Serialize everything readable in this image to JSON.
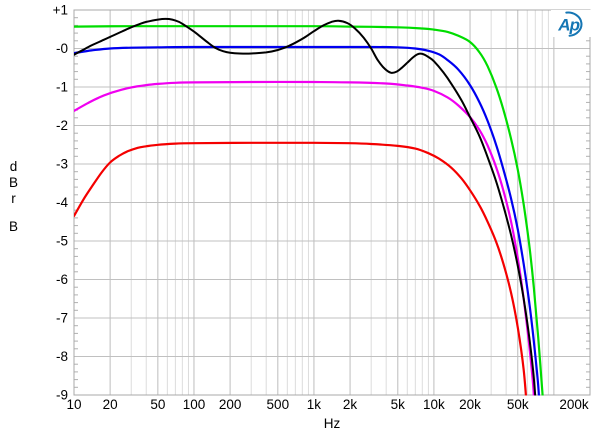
{
  "figure": {
    "background": "#ffffff"
  },
  "logo": {
    "text": "Ap",
    "color": "#1576b4"
  },
  "chart_data": {
    "type": "line",
    "title": "",
    "xlabel": "Hz",
    "ylabel_stack": [
      "d",
      "B",
      "r",
      "",
      "B"
    ],
    "x_axis": {
      "scale": "log",
      "min": 10,
      "max": 200000,
      "ticks": [
        {
          "v": 10,
          "label": "10"
        },
        {
          "v": 20,
          "label": "20"
        },
        {
          "v": 50,
          "label": "50"
        },
        {
          "v": 100,
          "label": "100"
        },
        {
          "v": 200,
          "label": "200"
        },
        {
          "v": 500,
          "label": "500"
        },
        {
          "v": 1000,
          "label": "1k"
        },
        {
          "v": 2000,
          "label": "2k"
        },
        {
          "v": 5000,
          "label": "5k"
        },
        {
          "v": 10000,
          "label": "10k"
        },
        {
          "v": 20000,
          "label": "20k"
        },
        {
          "v": 50000,
          "label": "50k"
        },
        {
          "v": 100000,
          "label": ""
        },
        {
          "v": 200000,
          "label": "200k"
        }
      ]
    },
    "y_axis": {
      "min": -9,
      "max": 1,
      "minor_tick_step": 0.2,
      "ticks": [
        {
          "v": 1,
          "label": "+1"
        },
        {
          "v": 0,
          "label": "-0"
        },
        {
          "v": -1,
          "label": "-1"
        },
        {
          "v": -2,
          "label": "-2"
        },
        {
          "v": -3,
          "label": "-3"
        },
        {
          "v": -4,
          "label": "-4"
        },
        {
          "v": -5,
          "label": "-5"
        },
        {
          "v": -6,
          "label": "-6"
        },
        {
          "v": -7,
          "label": "-7"
        },
        {
          "v": -8,
          "label": "-8"
        },
        {
          "v": -9,
          "label": "-9"
        }
      ]
    },
    "grid": {
      "minor_color": "#dcdcdc",
      "major_color": "#bdbdbd",
      "horizontal_color": "#c0c0c0",
      "frame_color": "#a8a8a8",
      "tick_color": "#b0b0b0"
    },
    "series": [
      {
        "name": "green-trace",
        "color": "#00dd00",
        "width": 2.2,
        "points": [
          [
            10,
            0.57
          ],
          [
            30,
            0.58
          ],
          [
            100,
            0.58
          ],
          [
            300,
            0.58
          ],
          [
            1000,
            0.58
          ],
          [
            2000,
            0.57
          ],
          [
            5000,
            0.55
          ],
          [
            8000,
            0.52
          ],
          [
            10000,
            0.49
          ],
          [
            13000,
            0.43
          ],
          [
            16000,
            0.33
          ],
          [
            20000,
            0.17
          ],
          [
            24000,
            -0.1
          ],
          [
            28000,
            -0.46
          ],
          [
            33000,
            -1.0
          ],
          [
            38000,
            -1.6
          ],
          [
            44000,
            -2.35
          ],
          [
            50000,
            -3.15
          ],
          [
            56000,
            -4.05
          ],
          [
            62000,
            -5.05
          ],
          [
            68000,
            -6.2
          ],
          [
            74000,
            -7.5
          ],
          [
            80000,
            -8.9
          ],
          [
            82500,
            -9.5
          ]
        ]
      },
      {
        "name": "blue-trace",
        "color": "#0000f0",
        "width": 2.2,
        "points": [
          [
            10,
            -0.12
          ],
          [
            14,
            -0.05
          ],
          [
            20,
            0.0
          ],
          [
            30,
            0.02
          ],
          [
            50,
            0.03
          ],
          [
            100,
            0.04
          ],
          [
            300,
            0.04
          ],
          [
            1000,
            0.04
          ],
          [
            3000,
            0.04
          ],
          [
            5000,
            0.03
          ],
          [
            7000,
            0.0
          ],
          [
            9000,
            -0.06
          ],
          [
            11000,
            -0.15
          ],
          [
            13000,
            -0.3
          ],
          [
            16000,
            -0.55
          ],
          [
            20000,
            -0.95
          ],
          [
            24000,
            -1.4
          ],
          [
            28000,
            -1.88
          ],
          [
            33000,
            -2.5
          ],
          [
            38000,
            -3.15
          ],
          [
            44000,
            -3.9
          ],
          [
            50000,
            -4.7
          ],
          [
            56000,
            -5.6
          ],
          [
            62000,
            -6.55
          ],
          [
            68000,
            -7.6
          ],
          [
            74000,
            -8.75
          ],
          [
            76500,
            -9.5
          ]
        ]
      },
      {
        "name": "magenta-trace",
        "color": "#f000f0",
        "width": 2.2,
        "points": [
          [
            10,
            -1.62
          ],
          [
            13,
            -1.42
          ],
          [
            16,
            -1.28
          ],
          [
            20,
            -1.16
          ],
          [
            25,
            -1.07
          ],
          [
            30,
            -1.01
          ],
          [
            40,
            -0.95
          ],
          [
            50,
            -0.92
          ],
          [
            70,
            -0.89
          ],
          [
            100,
            -0.88
          ],
          [
            300,
            -0.87
          ],
          [
            1000,
            -0.87
          ],
          [
            2000,
            -0.88
          ],
          [
            4000,
            -0.91
          ],
          [
            6000,
            -0.96
          ],
          [
            8000,
            -1.02
          ],
          [
            10000,
            -1.1
          ],
          [
            13000,
            -1.27
          ],
          [
            16000,
            -1.48
          ],
          [
            20000,
            -1.78
          ],
          [
            24000,
            -2.12
          ],
          [
            28000,
            -2.52
          ],
          [
            33000,
            -3.08
          ],
          [
            38000,
            -3.7
          ],
          [
            44000,
            -4.5
          ],
          [
            50000,
            -5.45
          ],
          [
            56000,
            -6.5
          ],
          [
            62000,
            -7.65
          ],
          [
            67000,
            -8.7
          ],
          [
            69500,
            -9.5
          ]
        ]
      },
      {
        "name": "red-trace",
        "color": "#f40000",
        "width": 2.2,
        "points": [
          [
            10,
            -4.35
          ],
          [
            12,
            -3.92
          ],
          [
            14,
            -3.6
          ],
          [
            17,
            -3.22
          ],
          [
            20,
            -2.96
          ],
          [
            24,
            -2.78
          ],
          [
            28,
            -2.67
          ],
          [
            34,
            -2.58
          ],
          [
            40,
            -2.54
          ],
          [
            50,
            -2.5
          ],
          [
            70,
            -2.47
          ],
          [
            100,
            -2.46
          ],
          [
            300,
            -2.45
          ],
          [
            1000,
            -2.45
          ],
          [
            2000,
            -2.46
          ],
          [
            3000,
            -2.48
          ],
          [
            5000,
            -2.53
          ],
          [
            7000,
            -2.6
          ],
          [
            9000,
            -2.72
          ],
          [
            11000,
            -2.86
          ],
          [
            14000,
            -3.1
          ],
          [
            17000,
            -3.38
          ],
          [
            20000,
            -3.68
          ],
          [
            24000,
            -4.08
          ],
          [
            28000,
            -4.5
          ],
          [
            33000,
            -5.02
          ],
          [
            38000,
            -5.6
          ],
          [
            44000,
            -6.35
          ],
          [
            50000,
            -7.25
          ],
          [
            56000,
            -8.35
          ],
          [
            60000,
            -9.5
          ]
        ]
      },
      {
        "name": "black-trace",
        "color": "#000000",
        "width": 2.0,
        "points": [
          [
            10,
            -0.16
          ],
          [
            12,
            -0.03
          ],
          [
            14,
            0.08
          ],
          [
            17,
            0.2
          ],
          [
            20,
            0.3
          ],
          [
            25,
            0.44
          ],
          [
            30,
            0.55
          ],
          [
            35,
            0.63
          ],
          [
            40,
            0.69
          ],
          [
            50,
            0.75
          ],
          [
            58,
            0.77
          ],
          [
            66,
            0.75
          ],
          [
            75,
            0.69
          ],
          [
            85,
            0.59
          ],
          [
            100,
            0.44
          ],
          [
            115,
            0.29
          ],
          [
            130,
            0.16
          ],
          [
            150,
            0.02
          ],
          [
            175,
            -0.07
          ],
          [
            200,
            -0.11
          ],
          [
            240,
            -0.13
          ],
          [
            300,
            -0.13
          ],
          [
            400,
            -0.1
          ],
          [
            500,
            -0.04
          ],
          [
            600,
            0.05
          ],
          [
            700,
            0.15
          ],
          [
            850,
            0.3
          ],
          [
            1000,
            0.45
          ],
          [
            1200,
            0.6
          ],
          [
            1400,
            0.69
          ],
          [
            1600,
            0.72
          ],
          [
            1900,
            0.66
          ],
          [
            2200,
            0.52
          ],
          [
            2600,
            0.28
          ],
          [
            3000,
            0.0
          ],
          [
            3400,
            -0.3
          ],
          [
            3900,
            -0.53
          ],
          [
            4400,
            -0.63
          ],
          [
            4900,
            -0.6
          ],
          [
            5400,
            -0.5
          ],
          [
            6000,
            -0.37
          ],
          [
            6700,
            -0.23
          ],
          [
            7300,
            -0.15
          ],
          [
            8000,
            -0.14
          ],
          [
            9000,
            -0.22
          ],
          [
            10000,
            -0.33
          ],
          [
            12000,
            -0.62
          ],
          [
            14000,
            -0.92
          ],
          [
            17000,
            -1.35
          ],
          [
            20000,
            -1.78
          ],
          [
            24000,
            -2.28
          ],
          [
            28000,
            -2.82
          ],
          [
            33000,
            -3.45
          ],
          [
            38000,
            -4.1
          ],
          [
            44000,
            -4.85
          ],
          [
            50000,
            -5.65
          ],
          [
            56000,
            -6.5
          ],
          [
            62000,
            -7.45
          ],
          [
            68000,
            -8.55
          ],
          [
            71500,
            -9.5
          ]
        ]
      }
    ]
  }
}
